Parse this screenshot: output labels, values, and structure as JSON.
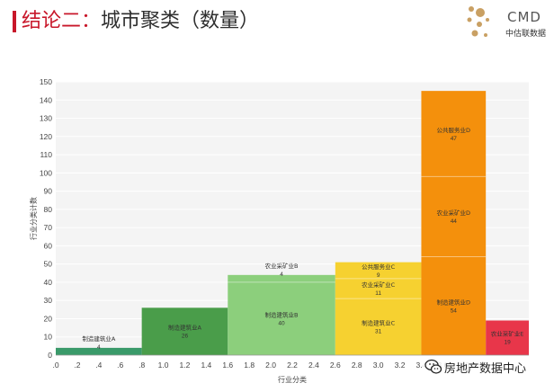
{
  "header": {
    "title_highlight": "结论二：",
    "title_rest": "城市聚类（数量）",
    "accent_color": "#c8172a",
    "logo_icon": "cmd-logo-icon",
    "logo_wordmark": "CMD",
    "logo_text": "中估联数据"
  },
  "watermark": {
    "icon": "wechat-icon",
    "text": "房地产数据中心"
  },
  "chart_data": {
    "type": "bar",
    "subtype": "variable-width stacked bar (marimekko)",
    "title": "",
    "xlabel": "行业分类",
    "ylabel": "行业分类计数",
    "xlim": [
      0,
      4.4
    ],
    "ylim": [
      0,
      150
    ],
    "x_ticks": [
      ".0",
      ".2",
      ".4",
      ".6",
      ".8",
      "1.0",
      "1.2",
      "1.4",
      "1.6",
      "1.8",
      "2.0",
      "2.2",
      "2.4",
      "2.6",
      "2.8",
      "3.0",
      "3.2",
      "3.4",
      "3.6",
      "3.8"
    ],
    "y_ticks": [
      0,
      10,
      20,
      30,
      40,
      50,
      60,
      70,
      80,
      90,
      100,
      110,
      120,
      130,
      140,
      150
    ],
    "grid": true,
    "legend": "none",
    "groups": [
      {
        "x0": 0.0,
        "x1": 0.8,
        "color": "#3a9a6a",
        "segments": [
          {
            "label": "制造建筑业A",
            "value": 4
          }
        ]
      },
      {
        "x0": 0.8,
        "x1": 1.6,
        "color": "#4a9d4a",
        "segments": [
          {
            "label": "制造建筑业A",
            "value": 26
          }
        ]
      },
      {
        "x0": 1.6,
        "x1": 2.6,
        "color": "#8ccf7c",
        "segments": [
          {
            "label": "制造建筑业B",
            "value": 40
          },
          {
            "label": "农业采矿业B",
            "value": 4
          }
        ]
      },
      {
        "x0": 2.6,
        "x1": 3.4,
        "color": "#f6d130",
        "segments": [
          {
            "label": "制造建筑业C",
            "value": 31
          },
          {
            "label": "农业采矿业C",
            "value": 11
          },
          {
            "label": "公共服务业C",
            "value": 9
          }
        ]
      },
      {
        "x0": 3.4,
        "x1": 4.0,
        "color": "#f4900c",
        "segments": [
          {
            "label": "制造建筑业D",
            "value": 54
          },
          {
            "label": "农业采矿业D",
            "value": 44
          },
          {
            "label": "公共服务业D",
            "value": 47
          }
        ]
      },
      {
        "x0": 4.0,
        "x1": 4.4,
        "color": "#e8364a",
        "segments": [
          {
            "label": "农业采矿业E",
            "value": 19
          }
        ]
      }
    ]
  }
}
